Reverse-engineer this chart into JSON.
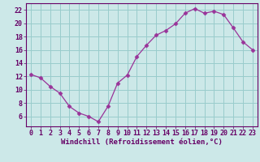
{
  "x": [
    0,
    1,
    2,
    3,
    4,
    5,
    6,
    7,
    8,
    9,
    10,
    11,
    12,
    13,
    14,
    15,
    16,
    17,
    18,
    19,
    20,
    21,
    22,
    23
  ],
  "y": [
    12.3,
    11.8,
    10.5,
    9.5,
    7.5,
    6.5,
    6.0,
    5.2,
    7.5,
    11.0,
    12.2,
    15.0,
    16.7,
    18.2,
    18.9,
    19.9,
    21.5,
    22.2,
    21.5,
    21.8,
    21.3,
    19.3,
    17.2,
    16.0
  ],
  "line_color": "#993399",
  "marker": "D",
  "marker_size": 2.5,
  "bg_color": "#cce8e8",
  "grid_color": "#99cccc",
  "axis_color": "#660066",
  "xlabel": "Windchill (Refroidissement éolien,°C)",
  "xlabel_fontsize": 6.5,
  "tick_fontsize": 6.0,
  "xlim": [
    -0.5,
    23.5
  ],
  "ylim": [
    4.5,
    23.0
  ],
  "yticks": [
    6,
    8,
    10,
    12,
    14,
    16,
    18,
    20,
    22
  ],
  "xticks": [
    0,
    1,
    2,
    3,
    4,
    5,
    6,
    7,
    8,
    9,
    10,
    11,
    12,
    13,
    14,
    15,
    16,
    17,
    18,
    19,
    20,
    21,
    22,
    23
  ]
}
